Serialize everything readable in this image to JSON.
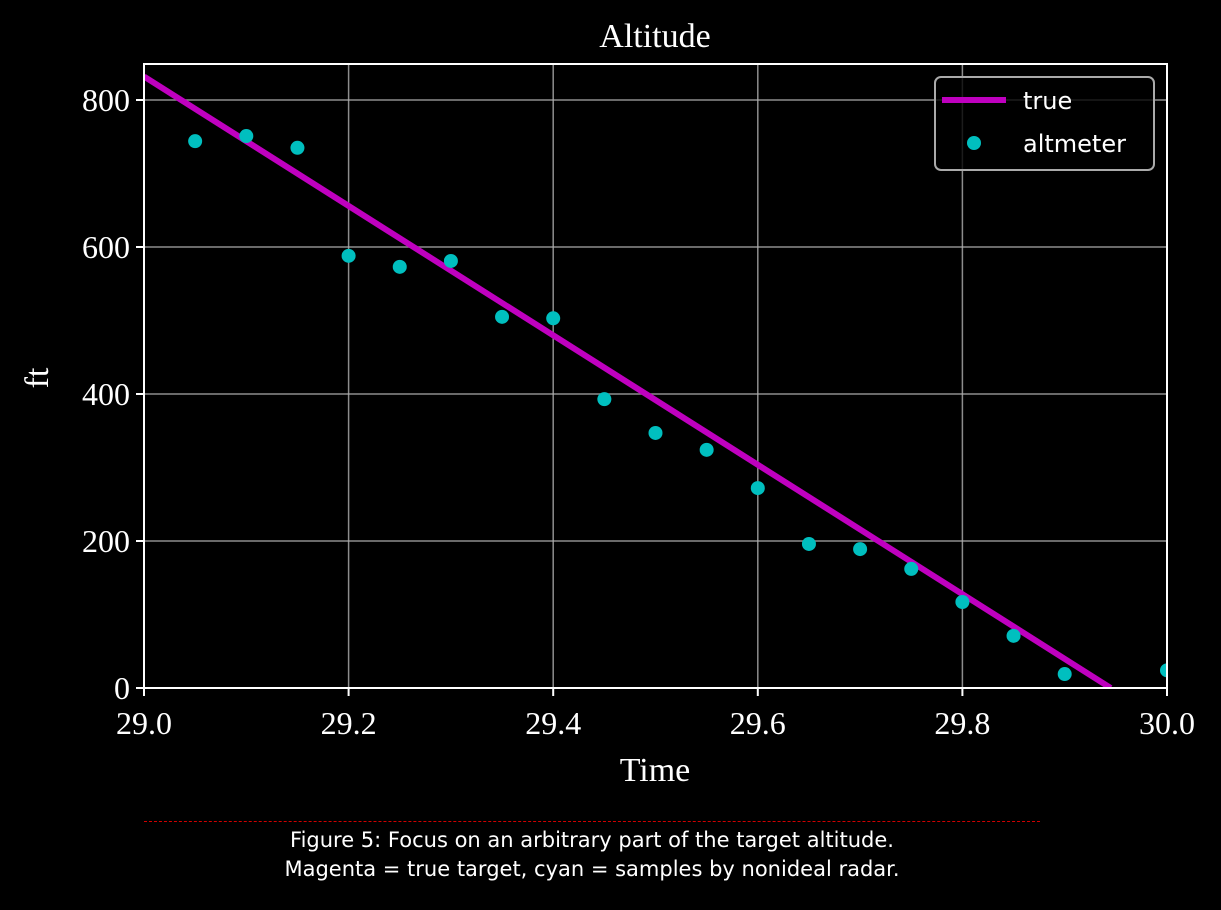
{
  "chart_data": {
    "type": "line",
    "title": "Altitude",
    "xlabel": "Time",
    "ylabel": "ft",
    "xlim": [
      29.0,
      30.0
    ],
    "ylim": [
      0,
      850
    ],
    "xticks": [
      29.0,
      29.2,
      29.4,
      29.6,
      29.8,
      30.0
    ],
    "xtick_labels": [
      "29.0",
      "29.2",
      "29.4",
      "29.6",
      "29.8",
      "30.0"
    ],
    "yticks": [
      0,
      200,
      400,
      600,
      800
    ],
    "ytick_labels": [
      "0",
      "200",
      "400",
      "600",
      "800"
    ],
    "grid": true,
    "legend_position": "upper right",
    "series": [
      {
        "name": "true",
        "type": "line",
        "color": "#bf00bf",
        "x": [
          29.0,
          29.945
        ],
        "y": [
          832,
          0
        ]
      },
      {
        "name": "altmeter",
        "type": "scatter",
        "color": "#00bfbf",
        "x": [
          29.05,
          29.1,
          29.15,
          29.2,
          29.25,
          29.3,
          29.35,
          29.4,
          29.45,
          29.5,
          29.55,
          29.6,
          29.65,
          29.7,
          29.75,
          29.8,
          29.85,
          29.9,
          30.0
        ],
        "y": [
          744,
          751,
          735,
          588,
          573,
          581,
          505,
          503,
          393,
          347,
          324,
          272,
          196,
          189,
          162,
          117,
          71,
          19,
          24
        ]
      }
    ]
  },
  "caption": {
    "line1": "Figure 5: Focus on an arbitrary part of the target altitude.",
    "line2": "Magenta = true target, cyan = samples by nonideal radar."
  }
}
